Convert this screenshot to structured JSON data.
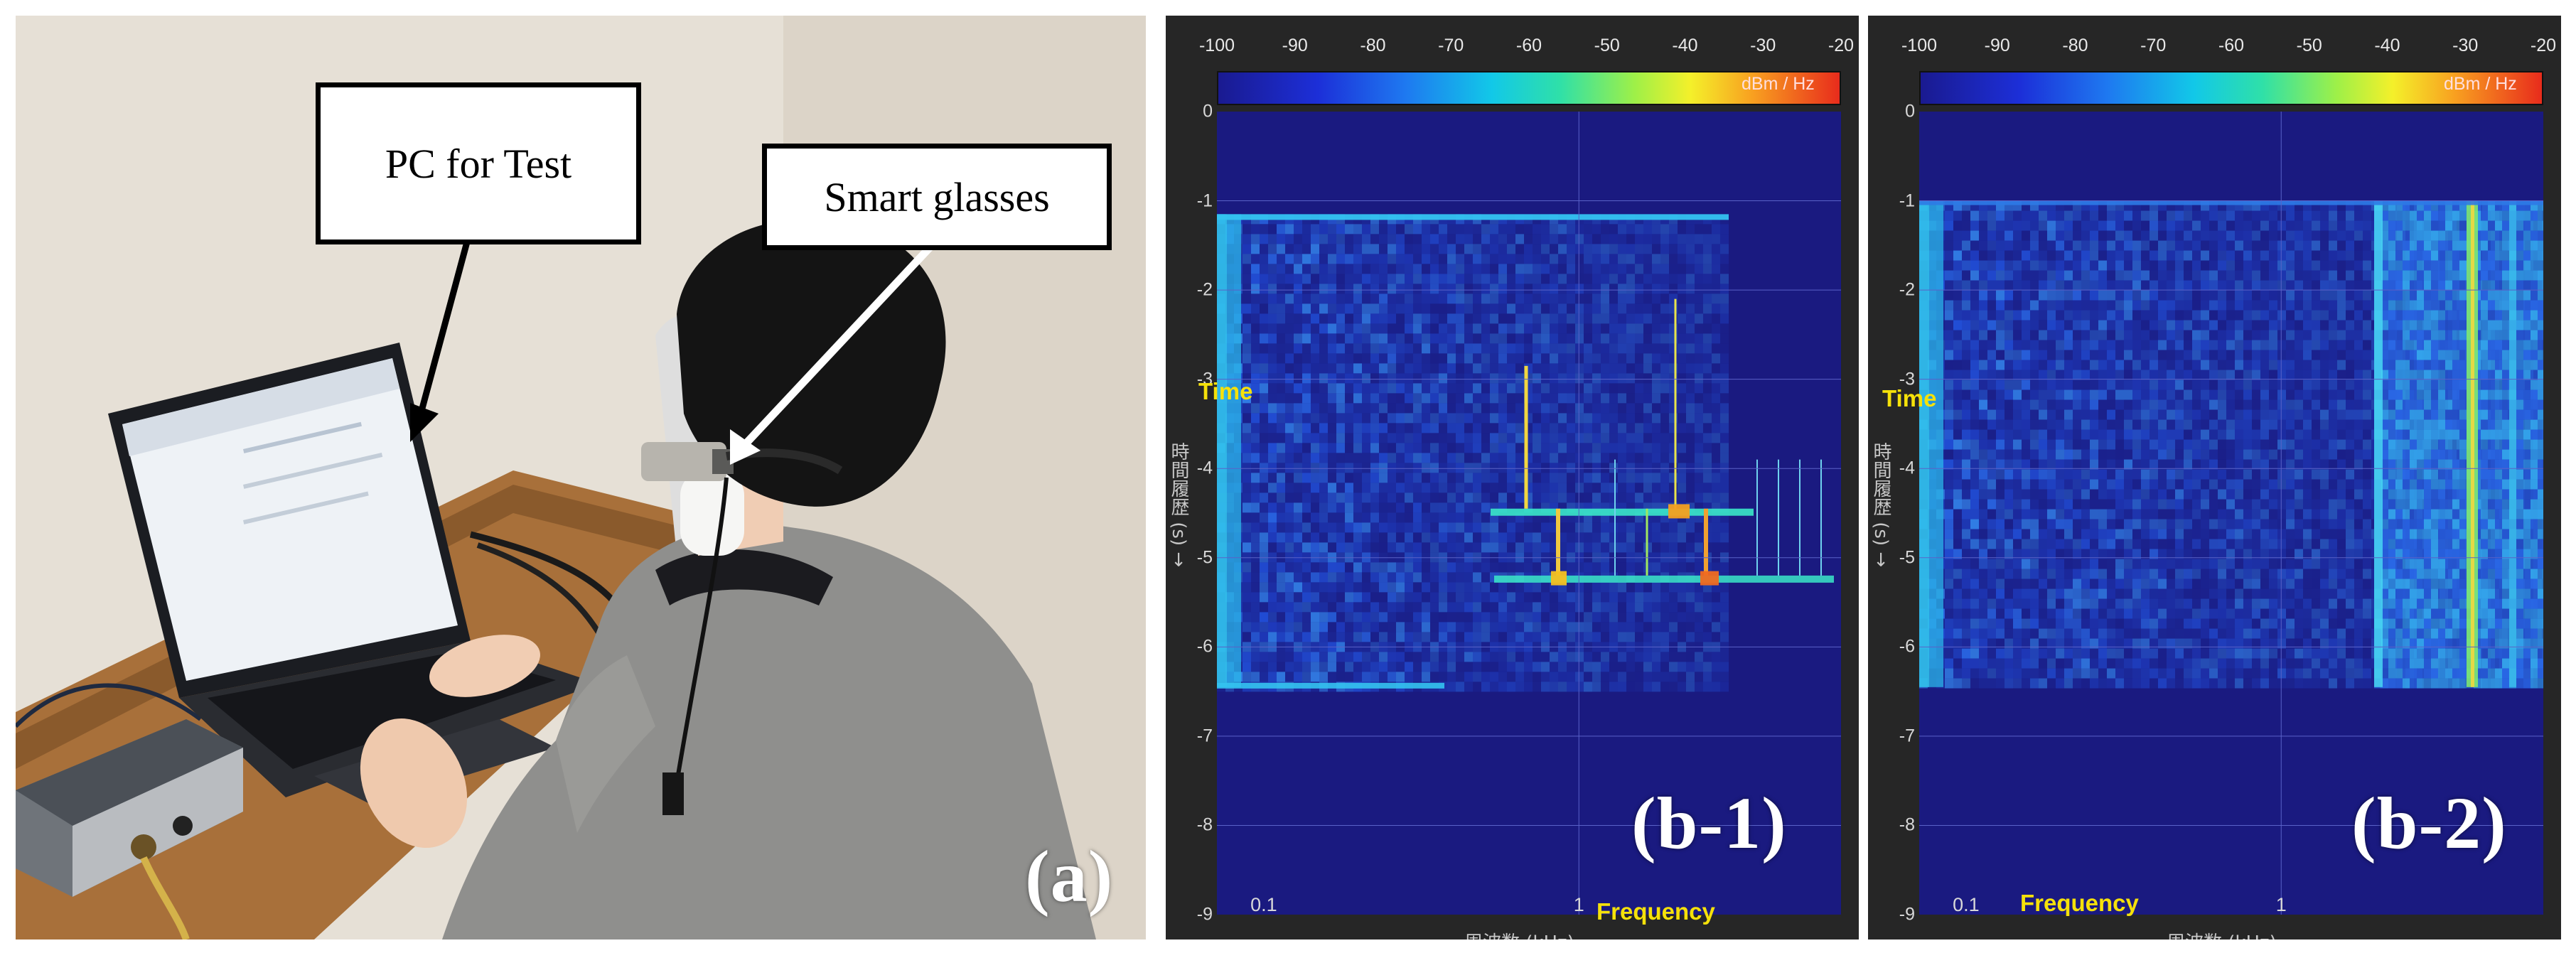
{
  "panel_a": {
    "letter": "(a)",
    "callouts": {
      "pc": "PC for Test",
      "glasses": "Smart glasses"
    }
  },
  "spectrograms": [
    {
      "letter": "(b-1)",
      "colorbar_ticks": [
        "-100",
        "-90",
        "-80",
        "-70",
        "-60",
        "-50",
        "-40",
        "-30",
        "-20"
      ],
      "unit": "dBm / Hz",
      "y_ticks": [
        "0",
        "-1",
        "-2",
        "-3",
        "-4",
        "-5",
        "-6",
        "-7",
        "-8",
        "-9"
      ],
      "x_ticks": [
        "0.1",
        "1"
      ],
      "y_axis_label": "時間履歴 (s) →",
      "x_axis_label": "周波数 (kHz)",
      "time_label": "Time",
      "freq_label": "Frequency"
    },
    {
      "letter": "(b-2)",
      "colorbar_ticks": [
        "-100",
        "-90",
        "-80",
        "-70",
        "-60",
        "-50",
        "-40",
        "-30",
        "-20"
      ],
      "unit": "dBm / Hz",
      "y_ticks": [
        "0",
        "-1",
        "-2",
        "-3",
        "-4",
        "-5",
        "-6",
        "-7",
        "-8",
        "-9"
      ],
      "x_ticks": [
        "0.1",
        "1"
      ],
      "y_axis_label": "時間履歴 (s) →",
      "x_axis_label": "周波数 (kHz)",
      "time_label": "Time",
      "freq_label": "Frequency"
    }
  ],
  "colors": {
    "spectrogram_background": "#1a1a7e",
    "label_yellow": "#f5e10a",
    "frame_dark": "#262626"
  }
}
